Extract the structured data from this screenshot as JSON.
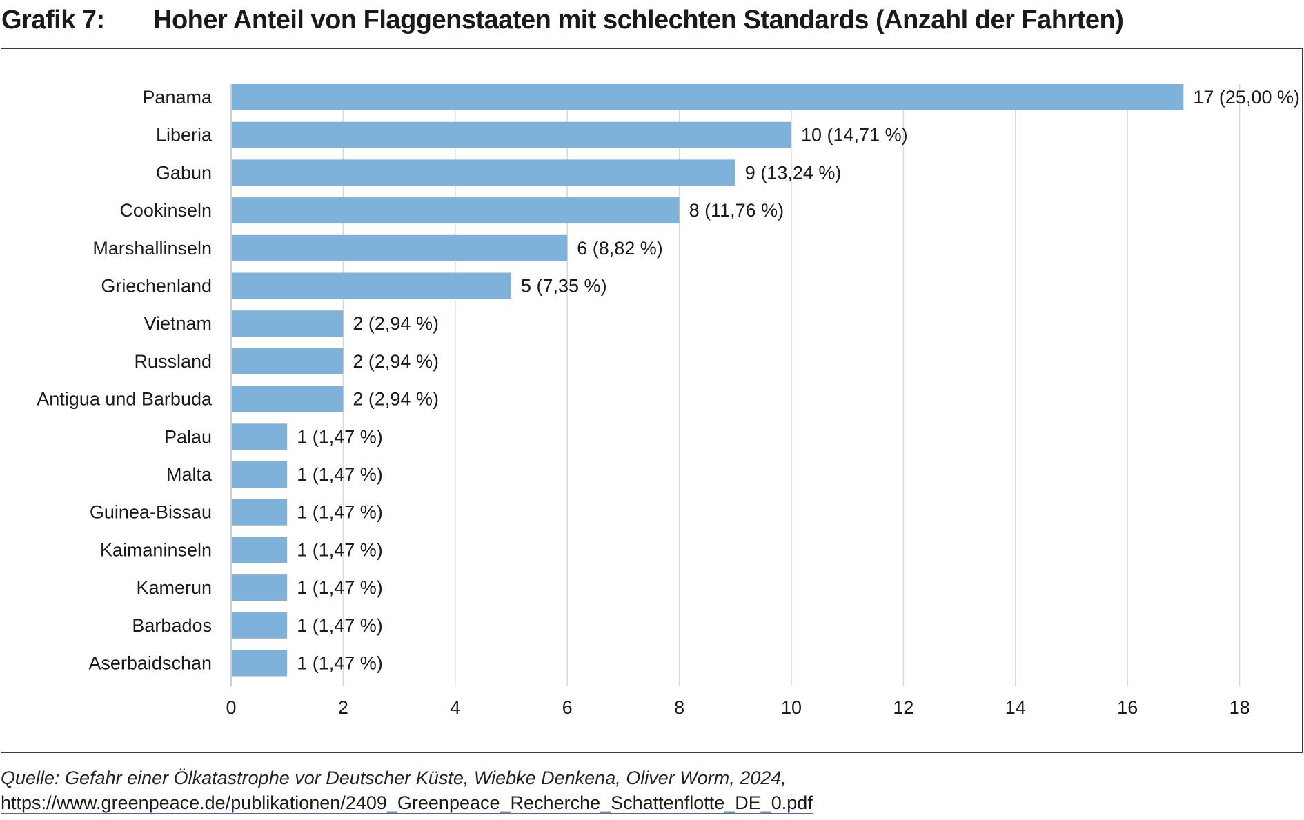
{
  "header": {
    "label": "Grafik 7:",
    "title": "Hoher Anteil von Flaggenstaaten mit schlechten Standards (Anzahl der Fahrten)"
  },
  "chart_data": {
    "type": "bar",
    "orientation": "horizontal",
    "title": "Hoher Anteil von Flaggenstaaten mit schlechten Standards (Anzahl der Fahrten)",
    "xlabel": "",
    "ylabel": "",
    "xlim": [
      0,
      18
    ],
    "xticks": [
      0,
      2,
      4,
      6,
      8,
      10,
      12,
      14,
      16,
      18
    ],
    "grid": "vertical",
    "bar_color": "#7fb2da",
    "categories": [
      "Panama",
      "Liberia",
      "Gabun",
      "Cookinseln",
      "Marshallinseln",
      "Griechenland",
      "Vietnam",
      "Russland",
      "Antigua und Barbuda",
      "Palau",
      "Malta",
      "Guinea-Bissau",
      "Kaimaninseln",
      "Kamerun",
      "Barbados",
      "Aserbaidschan"
    ],
    "values": [
      17,
      10,
      9,
      8,
      6,
      5,
      2,
      2,
      2,
      1,
      1,
      1,
      1,
      1,
      1,
      1
    ],
    "data_labels": [
      "17 (25,00 %)",
      "10 (14,71 %)",
      "9 (13,24 %)",
      "8 (11,76 %)",
      "6 (8,82 %)",
      "5 (7,35 %)",
      "2 (2,94 %)",
      "2 (2,94 %)",
      "2 (2,94 %)",
      "1 (1,47 %)",
      "1 (1,47 %)",
      "1 (1,47 %)",
      "1 (1,47 %)",
      "1 (1,47 %)",
      "1 (1,47 %)",
      "1 (1,47 %)"
    ]
  },
  "source": {
    "text": "Quelle: Gefahr einer Ölkatastrophe vor Deutscher Küste, Wiebke Denkena, Oliver Worm, 2024, ",
    "link": "https://www.greenpeace.de/publikationen/2409_Greenpeace_Recherche_Schattenflotte_DE_0.pdf"
  }
}
